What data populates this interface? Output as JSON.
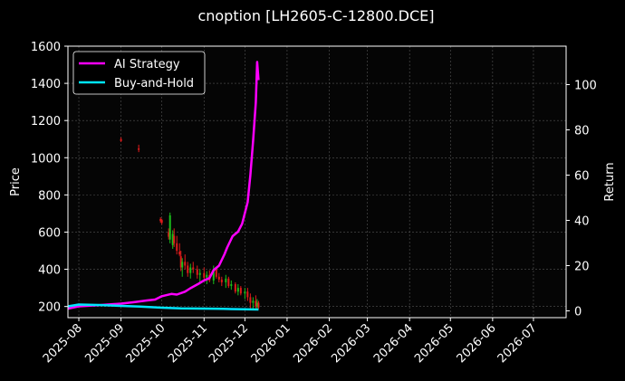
{
  "chart_data": {
    "type": "line",
    "title": "cnoption [LH2605-C-12800.DCE]",
    "ylabel_left": "Price",
    "ylabel_right": "Return",
    "left_axis": {
      "ylim": [
        140,
        1600
      ],
      "ticks": [
        200,
        400,
        600,
        800,
        1000,
        1200,
        1400,
        1600
      ]
    },
    "right_axis": {
      "ylim": [
        -3,
        117
      ],
      "ticks": [
        0,
        20,
        40,
        60,
        80,
        100
      ]
    },
    "x_axis": {
      "range": [
        "2025-07-24",
        "2026-07-25"
      ],
      "ticks": [
        "2025-08",
        "2025-09",
        "2025-10",
        "2025-11",
        "2025-12",
        "2026-01",
        "2026-02",
        "2026-03",
        "2026-04",
        "2026-05",
        "2026-06",
        "2026-07"
      ]
    },
    "grid": true,
    "legend_position": "top-left",
    "series": [
      {
        "name": "AI Strategy",
        "color": "#ff00ff",
        "axis": "right",
        "points": [
          [
            "2025-07-24",
            1.0
          ],
          [
            "2025-08-01",
            2.0
          ],
          [
            "2025-08-15",
            2.5
          ],
          [
            "2025-09-01",
            3.2
          ],
          [
            "2025-09-10",
            3.8
          ],
          [
            "2025-09-20",
            4.6
          ],
          [
            "2025-09-26",
            5.0
          ],
          [
            "2025-10-01",
            6.5
          ],
          [
            "2025-10-08",
            7.5
          ],
          [
            "2025-10-12",
            7.2
          ],
          [
            "2025-10-18",
            8.5
          ],
          [
            "2025-10-22",
            10.0
          ],
          [
            "2025-10-28",
            12.0
          ],
          [
            "2025-11-01",
            13.5
          ],
          [
            "2025-11-05",
            14.5
          ],
          [
            "2025-11-08",
            18.0
          ],
          [
            "2025-11-12",
            20.0
          ],
          [
            "2025-11-16",
            25.0
          ],
          [
            "2025-11-18",
            28.0
          ],
          [
            "2025-11-22",
            33.0
          ],
          [
            "2025-11-26",
            35.0
          ],
          [
            "2025-11-29",
            38.5
          ],
          [
            "2025-12-03",
            48.0
          ],
          [
            "2025-12-05",
            60.0
          ],
          [
            "2025-12-07",
            75.0
          ],
          [
            "2025-12-09",
            92.0
          ],
          [
            "2025-12-10",
            110.0
          ],
          [
            "2025-12-11",
            102.0
          ]
        ]
      },
      {
        "name": "Buy-and-Hold",
        "color": "#00e5ff",
        "axis": "right",
        "points": [
          [
            "2025-07-24",
            2.0
          ],
          [
            "2025-08-01",
            2.8
          ],
          [
            "2025-08-15",
            2.6
          ],
          [
            "2025-09-01",
            2.2
          ],
          [
            "2025-09-15",
            1.9
          ],
          [
            "2025-10-01",
            1.4
          ],
          [
            "2025-10-15",
            1.1
          ],
          [
            "2025-11-01",
            1.0
          ],
          [
            "2025-11-15",
            0.9
          ],
          [
            "2025-12-01",
            0.7
          ],
          [
            "2025-12-11",
            0.6
          ]
        ]
      }
    ],
    "candles": {
      "axis": "left",
      "up_color": "#1bbf1b",
      "down_color": "#e01b1b",
      "data": [
        [
          "2025-09-01",
          1100,
          1110,
          1085,
          1090
        ],
        [
          "2025-09-14",
          1050,
          1070,
          1030,
          1045
        ],
        [
          "2025-09-30",
          670,
          680,
          650,
          660
        ],
        [
          "2025-10-01",
          665,
          672,
          640,
          650
        ],
        [
          "2025-10-06",
          600,
          620,
          560,
          575
        ],
        [
          "2025-10-07",
          560,
          705,
          540,
          690
        ],
        [
          "2025-10-09",
          530,
          610,
          510,
          590
        ],
        [
          "2025-10-10",
          580,
          620,
          520,
          540
        ],
        [
          "2025-10-12",
          540,
          580,
          480,
          500
        ],
        [
          "2025-10-14",
          495,
          540,
          470,
          480
        ],
        [
          "2025-10-15",
          470,
          500,
          390,
          410
        ],
        [
          "2025-10-16",
          410,
          460,
          360,
          440
        ],
        [
          "2025-10-18",
          440,
          480,
          400,
          420
        ],
        [
          "2025-10-20",
          420,
          440,
          360,
          380
        ],
        [
          "2025-10-22",
          380,
          430,
          350,
          410
        ],
        [
          "2025-10-24",
          410,
          440,
          380,
          400
        ],
        [
          "2025-10-27",
          400,
          420,
          350,
          370
        ],
        [
          "2025-10-29",
          370,
          400,
          330,
          380
        ],
        [
          "2025-11-01",
          380,
          410,
          340,
          355
        ],
        [
          "2025-11-03",
          355,
          390,
          320,
          370
        ],
        [
          "2025-11-05",
          370,
          395,
          330,
          340
        ],
        [
          "2025-11-08",
          340,
          420,
          320,
          400
        ],
        [
          "2025-11-10",
          400,
          410,
          350,
          360
        ],
        [
          "2025-11-12",
          360,
          380,
          330,
          345
        ],
        [
          "2025-11-14",
          345,
          360,
          310,
          330
        ],
        [
          "2025-11-17",
          330,
          370,
          300,
          350
        ],
        [
          "2025-11-19",
          350,
          360,
          300,
          310
        ],
        [
          "2025-11-21",
          310,
          340,
          290,
          320
        ],
        [
          "2025-11-24",
          320,
          330,
          270,
          280
        ],
        [
          "2025-11-26",
          280,
          320,
          260,
          300
        ],
        [
          "2025-11-28",
          300,
          310,
          260,
          270
        ],
        [
          "2025-12-01",
          270,
          300,
          240,
          280
        ],
        [
          "2025-12-03",
          280,
          300,
          230,
          250
        ],
        [
          "2025-12-05",
          250,
          270,
          190,
          220
        ],
        [
          "2025-12-07",
          220,
          250,
          180,
          230
        ],
        [
          "2025-12-09",
          230,
          260,
          190,
          200
        ],
        [
          "2025-12-10",
          200,
          240,
          180,
          220
        ],
        [
          "2025-12-11",
          220,
          230,
          185,
          195
        ]
      ]
    }
  }
}
